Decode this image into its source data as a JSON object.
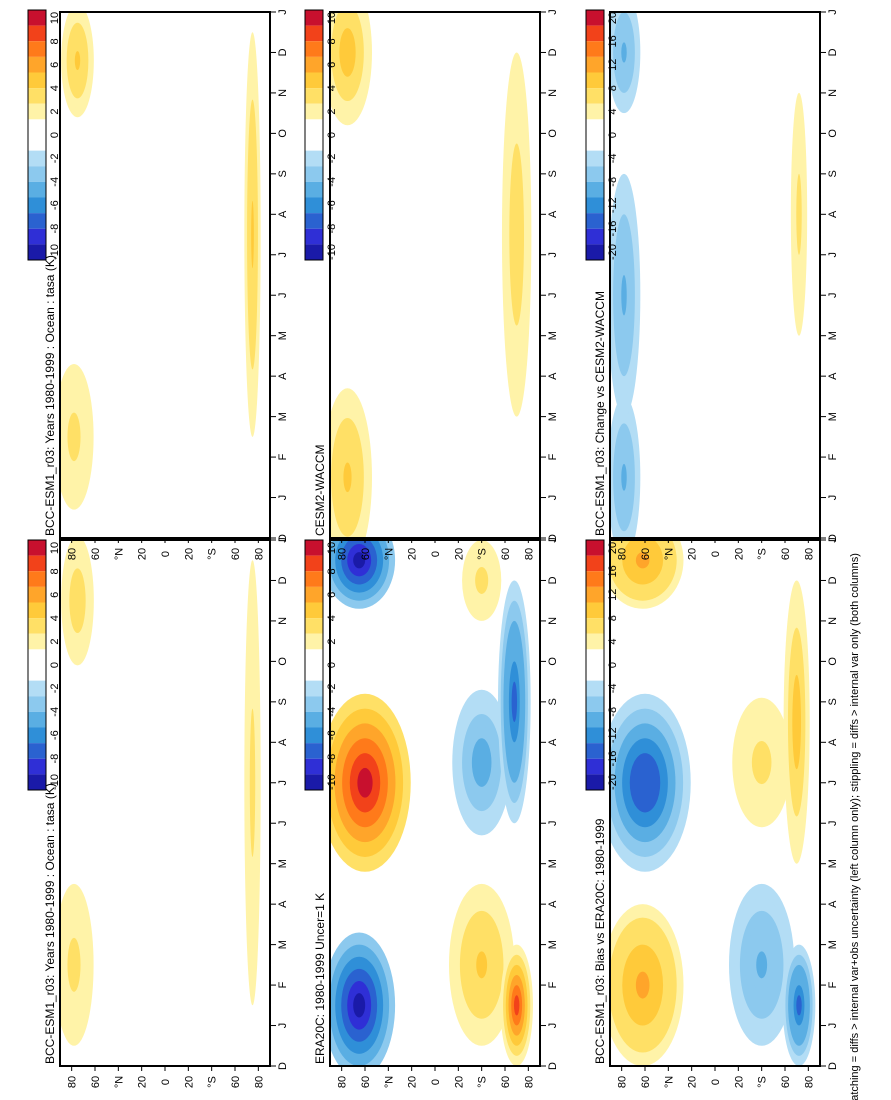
{
  "footer_note": "hatching = diffs > internal var+obs uncertainty (left column only); stippling = diffs > internal var only (both columns)",
  "colors": {
    "warm": [
      "#fff3a8",
      "#ffe066",
      "#ffca3a",
      "#ffa52a",
      "#ff7a1a",
      "#f2421a",
      "#c8102e"
    ],
    "cool": [
      "#b3ddf5",
      "#8cc9ee",
      "#5aaee3",
      "#2f8fd8",
      "#2a62d0",
      "#2f2fd6",
      "#1a1aa8"
    ]
  },
  "chart_data": [
    {
      "id": "p1",
      "type": "heatmap",
      "title": "BCC-ESM1_r03: Years 1980-1999 : Ocean : tasa (K)",
      "x_ticks": [
        "D",
        "J",
        "F",
        "M",
        "A",
        "M",
        "J",
        "J",
        "A",
        "S",
        "O",
        "N",
        "D",
        "J"
      ],
      "y_ticks": [
        "80",
        "60",
        "°N",
        "20",
        "0",
        "20",
        "°S",
        "60",
        "80"
      ],
      "ylim": [
        -90,
        90
      ],
      "colorbar": {
        "labels": [
          "10",
          "8",
          "6",
          "4",
          "2",
          "0",
          "-2",
          "-4",
          "-6",
          "-8",
          "-10"
        ]
      },
      "blobs": [
        {
          "lat": 78,
          "month": 2.5,
          "dlat": 12,
          "dmonth": 2.0,
          "value": 2.0
        },
        {
          "lat": 75,
          "month": 11.5,
          "dlat": 10,
          "dmonth": 1.6,
          "value": 2.5
        },
        {
          "lat": -75,
          "month": 7.0,
          "dlat": 5,
          "dmonth": 5.5,
          "value": 2.0
        }
      ]
    },
    {
      "id": "p2",
      "type": "heatmap",
      "title": "BCC-ESM1_r03: Years 1980-1999 : Ocean : tasa (K)",
      "x_ticks": [
        "D",
        "J",
        "F",
        "M",
        "A",
        "M",
        "J",
        "J",
        "A",
        "S",
        "O",
        "N",
        "D",
        "J"
      ],
      "y_ticks": [
        "80",
        "60",
        "°N",
        "20",
        "0",
        "20",
        "°S",
        "60",
        "80"
      ],
      "ylim": [
        -90,
        90
      ],
      "colorbar": {
        "labels": [
          "10",
          "8",
          "6",
          "4",
          "2",
          "0",
          "-2",
          "-4",
          "-6",
          "-8",
          "-10"
        ]
      },
      "blobs": [
        {
          "lat": 78,
          "month": 2.5,
          "dlat": 12,
          "dmonth": 1.8,
          "value": 2.0
        },
        {
          "lat": 75,
          "month": 11.8,
          "dlat": 10,
          "dmonth": 1.4,
          "value": 3.0
        },
        {
          "lat": -75,
          "month": 7.5,
          "dlat": 5,
          "dmonth": 5.0,
          "value": 3.0
        }
      ]
    },
    {
      "id": "p3",
      "type": "heatmap",
      "title": "ERA20C: 1980-1999 Uncer=1 K",
      "x_ticks": [
        "D",
        "J",
        "F",
        "M",
        "A",
        "M",
        "J",
        "J",
        "A",
        "S",
        "O",
        "N",
        "D",
        "J"
      ],
      "y_ticks": [
        "80",
        "60",
        "°N",
        "20",
        "0",
        "20",
        "°S",
        "60",
        "80"
      ],
      "ylim": [
        -90,
        90
      ],
      "colorbar": {
        "labels": [
          "10",
          "8",
          "6",
          "4",
          "2",
          "0",
          "-2",
          "-4",
          "-6",
          "-8",
          "-10"
        ]
      },
      "blobs": [
        {
          "lat": 65,
          "month": 1.5,
          "dlat": 22,
          "dmonth": 1.8,
          "value": -9.0
        },
        {
          "lat": 65,
          "month": 12.5,
          "dlat": 22,
          "dmonth": 1.2,
          "value": -9.0
        },
        {
          "lat": 60,
          "month": 7.0,
          "dlat": 28,
          "dmonth": 2.2,
          "value": 9.0
        },
        {
          "lat": -40,
          "month": 2.5,
          "dlat": 20,
          "dmonth": 2.0,
          "value": 3.0
        },
        {
          "lat": -70,
          "month": 1.5,
          "dlat": 10,
          "dmonth": 1.5,
          "value": 8.0
        },
        {
          "lat": -40,
          "month": 7.5,
          "dlat": 18,
          "dmonth": 1.8,
          "value": -3.5
        },
        {
          "lat": -68,
          "month": 9.0,
          "dlat": 10,
          "dmonth": 3.0,
          "value": -6.0
        },
        {
          "lat": -40,
          "month": 12.0,
          "dlat": 12,
          "dmonth": 1.0,
          "value": 2.0
        }
      ]
    },
    {
      "id": "p4",
      "type": "heatmap",
      "title": "CESM2-WACCM",
      "x_ticks": [
        "D",
        "J",
        "F",
        "M",
        "A",
        "M",
        "J",
        "J",
        "A",
        "S",
        "O",
        "N",
        "D",
        "J"
      ],
      "y_ticks": [
        "80",
        "60",
        "°N",
        "20",
        "0",
        "20",
        "°S",
        "60",
        "80"
      ],
      "ylim": [
        -90,
        90
      ],
      "colorbar": {
        "labels": [
          "10",
          "8",
          "6",
          "4",
          "2",
          "0",
          "-2",
          "-4",
          "-6",
          "-8",
          "-10"
        ]
      },
      "blobs": [
        {
          "lat": 75,
          "month": 1.5,
          "dlat": 15,
          "dmonth": 2.2,
          "value": 3.0
        },
        {
          "lat": 75,
          "month": 12.0,
          "dlat": 15,
          "dmonth": 1.8,
          "value": 4.0
        },
        {
          "lat": -70,
          "month": 7.5,
          "dlat": 9,
          "dmonth": 4.5,
          "value": 2.5
        }
      ]
    },
    {
      "id": "p5",
      "type": "heatmap",
      "title": "BCC-ESM1_r03: Bias vs ERA20C: 1980-1999",
      "x_ticks": [
        "D",
        "J",
        "F",
        "M",
        "A",
        "M",
        "J",
        "J",
        "A",
        "S",
        "O",
        "N",
        "D",
        "J"
      ],
      "y_ticks": [
        "80",
        "60",
        "°N",
        "20",
        "0",
        "20",
        "°S",
        "60",
        "80"
      ],
      "ylim": [
        -90,
        90
      ],
      "colorbar": {
        "labels": [
          "20",
          "16",
          "12",
          "8",
          "4",
          "0",
          "-4",
          "-8",
          "-12",
          "-16",
          "-20"
        ]
      },
      "blobs": [
        {
          "lat": 62,
          "month": 2.0,
          "dlat": 25,
          "dmonth": 2.0,
          "value": 10.0
        },
        {
          "lat": 62,
          "month": 12.5,
          "dlat": 25,
          "dmonth": 1.2,
          "value": 10.0
        },
        {
          "lat": 60,
          "month": 7.0,
          "dlat": 28,
          "dmonth": 2.2,
          "value": -14.0
        },
        {
          "lat": -40,
          "month": 2.5,
          "dlat": 20,
          "dmonth": 2.0,
          "value": -6.0
        },
        {
          "lat": -72,
          "month": 1.5,
          "dlat": 10,
          "dmonth": 1.5,
          "value": -12.0
        },
        {
          "lat": -40,
          "month": 7.5,
          "dlat": 18,
          "dmonth": 1.6,
          "value": 4.0
        },
        {
          "lat": -70,
          "month": 8.5,
          "dlat": 8,
          "dmonth": 3.5,
          "value": 8.0
        }
      ]
    },
    {
      "id": "p6",
      "type": "heatmap",
      "title": "BCC-ESM1_r03: Change vs CESM2-WACCM",
      "x_ticks": [
        "D",
        "J",
        "F",
        "M",
        "A",
        "M",
        "J",
        "J",
        "A",
        "S",
        "O",
        "N",
        "D",
        "J"
      ],
      "y_ticks": [
        "80",
        "60",
        "°N",
        "20",
        "0",
        "20",
        "°S",
        "60",
        "80"
      ],
      "ylim": [
        -90,
        90
      ],
      "colorbar": {
        "labels": [
          "20",
          "16",
          "12",
          "8",
          "4",
          "0",
          "-4",
          "-8",
          "-12",
          "-16",
          "-20"
        ]
      },
      "blobs": [
        {
          "lat": 78,
          "month": 1.5,
          "dlat": 10,
          "dmonth": 2.0,
          "value": -6.0
        },
        {
          "lat": 78,
          "month": 6.0,
          "dlat": 10,
          "dmonth": 3.0,
          "value": -6.0
        },
        {
          "lat": 78,
          "month": 12.0,
          "dlat": 10,
          "dmonth": 1.5,
          "value": -6.0
        },
        {
          "lat": -72,
          "month": 8.0,
          "dlat": 5,
          "dmonth": 3.0,
          "value": 4.0
        }
      ]
    }
  ]
}
